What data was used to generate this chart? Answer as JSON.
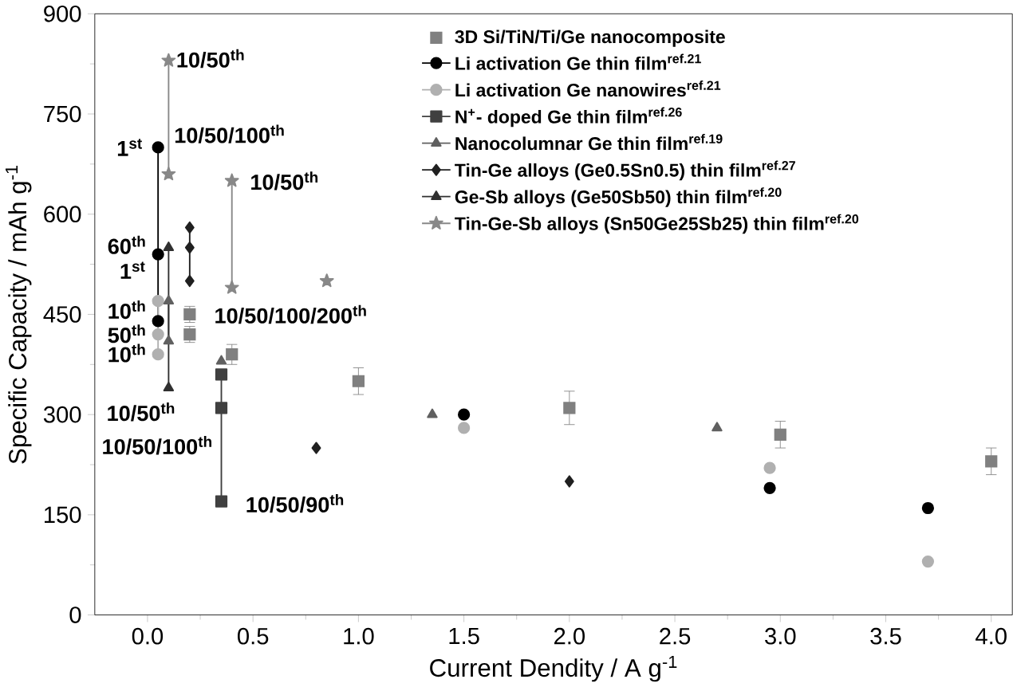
{
  "chart_data": {
    "type": "scatter",
    "xlabel": "Current Dendity / A g$^{-1}$",
    "ylabel": "Specific Capacity / mAh g$^{-1}$",
    "xlim": [
      -0.25,
      4.1
    ],
    "ylim": [
      0,
      900
    ],
    "xticks": [
      {
        "value": 0,
        "label": "0.0"
      },
      {
        "value": 0.5,
        "label": "0.5"
      },
      {
        "value": 1,
        "label": "1.0"
      },
      {
        "value": 1.5,
        "label": "1.5"
      },
      {
        "value": 2,
        "label": "2.0"
      },
      {
        "value": 2.5,
        "label": "2.5"
      },
      {
        "value": 3,
        "label": "3.0"
      },
      {
        "value": 3.5,
        "label": "3.5"
      },
      {
        "value": 4,
        "label": "4.0"
      }
    ],
    "yticks": [
      0,
      150,
      300,
      450,
      600,
      750,
      900
    ],
    "legend": "top right",
    "series": [
      {
        "name": "3D Si/TiN/Ti/Ge nanocomposite",
        "marker": "square",
        "color": "#808080",
        "x": [
          0.2,
          0.2,
          0.4,
          1.0,
          2.0,
          3.0,
          4.0
        ],
        "values": [
          450,
          420,
          390,
          350,
          310,
          270,
          230
        ],
        "errors": [
          12,
          12,
          15,
          20,
          25,
          20,
          20
        ]
      },
      {
        "name": "Li activation Ge thin film$^{ref.21}$",
        "type": "line",
        "marker": "circle",
        "color": "#000000",
        "x": [
          0.05,
          0.05,
          0.05,
          null,
          1.5,
          null,
          2.95,
          null,
          3.7
        ],
        "values": [
          700,
          540,
          440,
          null,
          300,
          null,
          190,
          null,
          160
        ]
      },
      {
        "name": "Li activation Ge nanowires$^{ref.21}$",
        "type": "line",
        "marker": "circle",
        "color": "#b0b0b0",
        "x": [
          0.05,
          0.05,
          0.05,
          null,
          1.5,
          null,
          2.95,
          null,
          3.7
        ],
        "values": [
          470,
          420,
          390,
          null,
          280,
          null,
          220,
          null,
          80
        ]
      },
      {
        "name": "N$^{+}$- doped Ge thin film$^{ref.26}$",
        "type": "line",
        "marker": "square",
        "color": "#404040",
        "x": [
          0.35,
          0.35,
          0.35
        ],
        "values": [
          360,
          310,
          170
        ]
      },
      {
        "name": "Nanocolumnar Ge thin film$^{ref.19}$",
        "type": "line",
        "marker": "triangle",
        "color": "#606060",
        "x": [
          0.1,
          0.1,
          null,
          0.35,
          null,
          1.35,
          null,
          2.7
        ],
        "values": [
          470,
          410,
          null,
          380,
          null,
          300,
          null,
          280
        ]
      },
      {
        "name": "Tin-Ge alloys (Ge0.5Sn0.5) thin film$^{ref.27}$",
        "type": "line",
        "marker": "diamond",
        "color": "#202020",
        "x": [
          0.2,
          0.2,
          0.2,
          null,
          0.8,
          null,
          2.0
        ],
        "values": [
          580,
          550,
          500,
          null,
          250,
          null,
          200
        ]
      },
      {
        "name": "Ge-Sb alloys (Ge50Sb50) thin film$^{ref.20}$",
        "type": "line",
        "marker": "triangle",
        "color": "#303030",
        "x": [
          0.1,
          0.1
        ],
        "values": [
          550,
          340
        ]
      },
      {
        "name": "Tin-Ge-Sb alloys (Sn50Ge25Sb25) thin film$^{ref.20}$",
        "type": "line",
        "marker": "star",
        "color": "#888888",
        "x": [
          0.1,
          0.1,
          null,
          0.4,
          0.4,
          null,
          0.85
        ],
        "values": [
          830,
          660,
          null,
          650,
          490,
          null,
          500
        ]
      }
    ],
    "annotations": [
      "1$^{st}$",
      "10/50/100$^{th}$",
      "10/50$^{th}$",
      "10/50$^{th}$",
      "60$^{th}$",
      "1$^{st}$",
      "10$^{th}$",
      "50$^{th}$",
      "10$^{th}$",
      "10/50$^{th}$",
      "10/50/100$^{th}$",
      "10/50/100/200$^{th}$",
      "10/50/90$^{th}$"
    ]
  }
}
